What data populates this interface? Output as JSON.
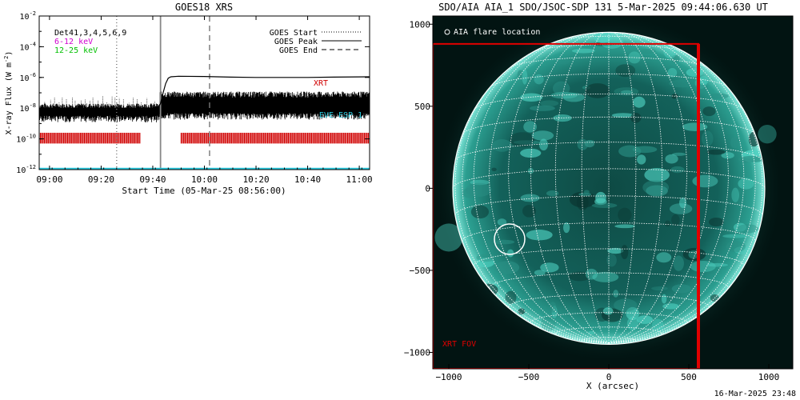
{
  "colors": {
    "background": "#ffffff",
    "axes": "#000000",
    "goes_flux": "#000000",
    "xrt": "#d00000",
    "eve": "#28c8dc",
    "magenta": "#d000d0",
    "green": "#00c000",
    "aia_disk": "#2fbfb0",
    "aia_background": "#021412",
    "fov": "#e00000",
    "grid": "#ffffff"
  },
  "footer": {
    "timestamp": "16-Mar-2025 23:48"
  },
  "chart_data": [
    {
      "type": "line",
      "title": "GOES18 XRS",
      "xlabel": "Start Time (05-Mar-25 08:56:00)",
      "ylabel": "X-ray Flux (W m",
      "ylabel_superscript": "-2",
      "ylabel_close": ")",
      "log_y": true,
      "xlim": [
        "08:56",
        "11:04"
      ],
      "ylim": [
        1e-12,
        0.01
      ],
      "x_ticks": [
        "09:00",
        "09:20",
        "09:40",
        "10:00",
        "10:20",
        "10:40",
        "11:00"
      ],
      "y_ticks": [
        {
          "base": "10",
          "exp": "-2",
          "value": 0.01
        },
        {
          "base": "10",
          "exp": "-4",
          "value": 0.0001
        },
        {
          "base": "10",
          "exp": "-6",
          "value": 1e-06
        },
        {
          "base": "10",
          "exp": "-8",
          "value": 1e-08
        },
        {
          "base": "10",
          "exp": "-10",
          "value": 1e-10
        },
        {
          "base": "10",
          "exp": "-12",
          "value": 1e-12
        }
      ],
      "legend_left": [
        {
          "label": "Det41,3,4,5,6,9",
          "color": "#000000"
        },
        {
          "label": "6-12 keV",
          "color": "#d000d0"
        },
        {
          "label": "12-25 keV",
          "color": "#00c000"
        }
      ],
      "legend_right": [
        {
          "label": "GOES Start",
          "style": "dotted"
        },
        {
          "label": "GOES Peak",
          "style": "solid"
        },
        {
          "label": "GOES End",
          "style": "dashed"
        }
      ],
      "vlines": [
        {
          "time": "09:26",
          "style": "dotted"
        },
        {
          "time": "09:43",
          "style": "solid"
        },
        {
          "time": "10:02",
          "style": "dashed"
        }
      ],
      "series": [
        {
          "name": "",
          "label": "XRT",
          "x": [
            "08:56",
            "09:10",
            "09:30",
            "09:42",
            "09:43",
            "09:44",
            "09:45",
            "09:46",
            "09:47",
            "09:50",
            "10:00",
            "10:10",
            "10:20",
            "10:30",
            "10:40",
            "10:50",
            "11:04"
          ],
          "y": [
            1e-08,
            1e-08,
            1e-08,
            1e-08,
            2e-08,
            1e-07,
            4e-07,
            9e-07,
            1.1e-06,
            1.2e-06,
            1.15e-06,
            1.05e-06,
            1e-06,
            1e-06,
            1e-06,
            1.05e-06,
            1.1e-06
          ]
        },
        {
          "name": "",
          "label": "EVE ESP 1",
          "x": [
            "08:56",
            "11:04"
          ],
          "y": [
            1e-12,
            1e-12
          ]
        }
      ],
      "xrt_cadence_segments": [
        [
          "08:56",
          "09:35"
        ],
        [
          "09:51",
          "11:04"
        ]
      ]
    },
    {
      "type": "heatmap",
      "title": "SDO/AIA AIA_1 SDO/JSOC-SDP 131  5-Mar-2025 09:44:06.630 UT",
      "xlabel": "X (arcsec)",
      "ylabel": "",
      "xlim": [
        -1100,
        1150
      ],
      "ylim": [
        -1100,
        1050
      ],
      "x_ticks": [
        -1000,
        -500,
        0,
        500,
        1000
      ],
      "y_ticks": [
        1000,
        500,
        0,
        -500,
        -1000
      ],
      "x_tick_labels": [
        "−1000",
        "−500",
        "0",
        "500",
        "1000"
      ],
      "y_tick_labels": [
        "1000",
        "500",
        "0",
        "−500",
        "−1000"
      ],
      "legend": [
        {
          "label": "AIA flare location",
          "marker": "circle-outline"
        }
      ],
      "solar_radius_arcsec": 975,
      "flare_location": {
        "x": -620,
        "y": -310,
        "radius_arcsec": 95
      },
      "xrt_fov": {
        "label": "XRT FOV",
        "x0": -1100,
        "x1": 560,
        "y0": -1100,
        "y1": 880
      }
    }
  ]
}
